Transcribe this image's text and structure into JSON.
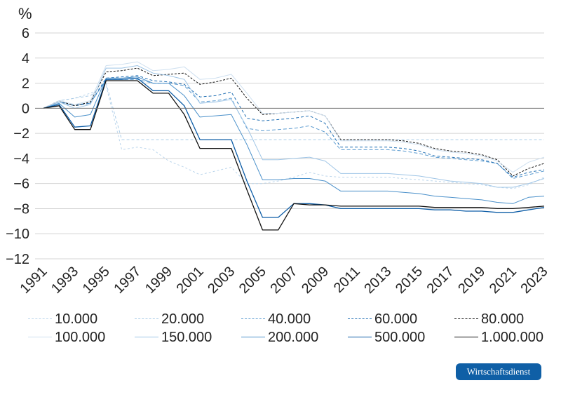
{
  "chart_data": {
    "type": "line",
    "ylabel": "%",
    "ylim": [
      -12,
      6
    ],
    "yticks": [
      6,
      4,
      2,
      0,
      -2,
      -4,
      -6,
      -8,
      -10,
      -12
    ],
    "x": [
      1991,
      1992,
      1993,
      1994,
      1995,
      1996,
      1997,
      1998,
      1999,
      2000,
      2001,
      2002,
      2003,
      2004,
      2005,
      2006,
      2007,
      2008,
      2009,
      2010,
      2011,
      2012,
      2013,
      2014,
      2015,
      2016,
      2017,
      2018,
      2019,
      2020,
      2021,
      2022,
      2023
    ],
    "xtick_labels": [
      "1991",
      "1993",
      "1995",
      "1997",
      "1999",
      "2001",
      "2003",
      "2005",
      "2007",
      "2009",
      "2011",
      "2013",
      "2015",
      "2017",
      "2019",
      "2021",
      "2023"
    ],
    "grid": "horizontal",
    "series": [
      {
        "name": "10.000",
        "color": "#bcd6ec",
        "dash": "3,3",
        "width": 1,
        "values": [
          0,
          0.6,
          0.8,
          1.2,
          1.8,
          -3.3,
          -3.1,
          -3.3,
          -4.2,
          -4.7,
          -5.3,
          -5.0,
          -4.7,
          -6.0,
          -6.0,
          -5.8,
          -5.5,
          -5.1,
          -5.4,
          -5.5,
          -5.5,
          -5.5,
          -5.5,
          -5.6,
          -5.7,
          -5.8,
          -5.9,
          -6.0,
          -6.1,
          -6.3,
          -6.4,
          -6.1,
          -5.5
        ]
      },
      {
        "name": "20.000",
        "color": "#a9cbe7",
        "dash": "4,3",
        "width": 1,
        "values": [
          0,
          0.6,
          0.8,
          1.0,
          2.0,
          -2.5,
          -2.5,
          -2.5,
          -2.5,
          -2.5,
          -2.5,
          -2.5,
          -2.5,
          -2.5,
          -2.5,
          -2.5,
          -2.5,
          -2.5,
          -2.5,
          -2.5,
          -2.5,
          -2.5,
          -2.5,
          -2.5,
          -2.5,
          -2.5,
          -2.5,
          -2.5,
          -2.5,
          -2.5,
          -2.5,
          -2.5,
          -2.5
        ]
      },
      {
        "name": "40.000",
        "color": "#5b9bd0",
        "dash": "5,3",
        "width": 1,
        "values": [
          0,
          0.5,
          0.3,
          0.4,
          2.3,
          2.3,
          2.3,
          2.0,
          2.0,
          1.8,
          0.5,
          0.6,
          0.8,
          -1.6,
          -1.8,
          -1.7,
          -1.6,
          -1.4,
          -1.9,
          -3.3,
          -3.3,
          -3.3,
          -3.3,
          -3.4,
          -3.6,
          -3.9,
          -4.0,
          -4.1,
          -4.2,
          -4.4,
          -5.6,
          -5.3,
          -5.0
        ]
      },
      {
        "name": "60.000",
        "color": "#1f6eb3",
        "dash": "4,3",
        "width": 1,
        "values": [
          0,
          0.5,
          0.2,
          0.4,
          2.4,
          2.5,
          2.6,
          2.2,
          2.1,
          1.9,
          0.9,
          1.0,
          1.3,
          -0.8,
          -1.0,
          -0.9,
          -0.8,
          -0.6,
          -1.2,
          -3.1,
          -3.1,
          -3.1,
          -3.1,
          -3.2,
          -3.4,
          -3.8,
          -3.9,
          -4.0,
          -4.1,
          -4.4,
          -5.5,
          -5.1,
          -4.9
        ]
      },
      {
        "name": "80.000",
        "color": "#111111",
        "dash": "3,2",
        "width": 1,
        "values": [
          0,
          0.6,
          0.2,
          0.5,
          2.9,
          3.0,
          3.2,
          2.6,
          2.7,
          2.8,
          1.9,
          2.1,
          2.4,
          0.8,
          -0.5,
          -0.4,
          -0.3,
          -0.2,
          -0.6,
          -2.5,
          -2.5,
          -2.5,
          -2.5,
          -2.6,
          -2.8,
          -3.2,
          -3.4,
          -3.5,
          -3.7,
          -4.1,
          -5.4,
          -4.8,
          -4.4
        ]
      },
      {
        "name": "100.000",
        "color": "#cfe0f0",
        "dash": "",
        "width": 1,
        "values": [
          0,
          0.6,
          0.3,
          0.6,
          3.4,
          3.5,
          3.7,
          3.0,
          3.1,
          3.3,
          2.3,
          2.4,
          2.7,
          1.2,
          -0.4,
          -0.4,
          -0.3,
          -0.2,
          -0.6,
          -2.6,
          -2.6,
          -2.6,
          -2.6,
          -2.7,
          -2.9,
          -3.3,
          -3.5,
          -3.6,
          -3.8,
          -4.2,
          -5.1,
          -4.3,
          -3.9
        ]
      },
      {
        "name": "150.000",
        "color": "#9fc5e6",
        "dash": "",
        "width": 1,
        "values": [
          0,
          0.5,
          0.0,
          0.3,
          3.2,
          3.2,
          3.4,
          2.8,
          2.6,
          2.3,
          0.4,
          0.5,
          0.7,
          -1.5,
          -4.1,
          -4.1,
          -4.0,
          -3.9,
          -4.2,
          -5.2,
          -5.2,
          -5.2,
          -5.2,
          -5.3,
          -5.4,
          -5.6,
          -5.8,
          -5.9,
          -6.0,
          -6.3,
          -6.3,
          -6.0,
          -5.6
        ]
      },
      {
        "name": "200.000",
        "color": "#4a90ca",
        "dash": "",
        "width": 1,
        "values": [
          0,
          0.4,
          -0.7,
          -0.5,
          2.4,
          2.4,
          2.5,
          2.0,
          2.0,
          1.0,
          -0.7,
          -0.6,
          -0.5,
          -2.9,
          -5.7,
          -5.7,
          -5.6,
          -5.6,
          -5.8,
          -6.6,
          -6.6,
          -6.6,
          -6.6,
          -6.7,
          -6.8,
          -7.0,
          -7.1,
          -7.2,
          -7.3,
          -7.5,
          -7.6,
          -7.1,
          -7.0
        ]
      },
      {
        "name": "500.000",
        "color": "#0c5ca6",
        "dash": "",
        "width": 1.3,
        "values": [
          0,
          0.3,
          -1.5,
          -1.4,
          2.3,
          2.3,
          2.4,
          1.4,
          1.4,
          0.2,
          -2.5,
          -2.5,
          -2.5,
          -5.8,
          -8.7,
          -8.7,
          -7.6,
          -7.6,
          -7.7,
          -8.0,
          -8.0,
          -8.0,
          -8.0,
          -8.0,
          -8.0,
          -8.1,
          -8.1,
          -8.2,
          -8.2,
          -8.3,
          -8.3,
          -8.1,
          -7.9
        ]
      },
      {
        "name": "1.000.000",
        "color": "#111111",
        "dash": "",
        "width": 1.3,
        "values": [
          0,
          0.2,
          -1.7,
          -1.7,
          2.2,
          2.2,
          2.2,
          1.2,
          1.2,
          -0.5,
          -3.2,
          -3.2,
          -3.2,
          -6.5,
          -9.7,
          -9.7,
          -7.6,
          -7.7,
          -7.7,
          -7.8,
          -7.8,
          -7.8,
          -7.8,
          -7.8,
          -7.8,
          -7.9,
          -7.9,
          -7.9,
          -7.9,
          -8.0,
          -8.0,
          -7.9,
          -7.8
        ]
      }
    ]
  },
  "branding": {
    "badge_label": "Wirtschaftsdienst",
    "badge_color": "#0f5fa6"
  }
}
